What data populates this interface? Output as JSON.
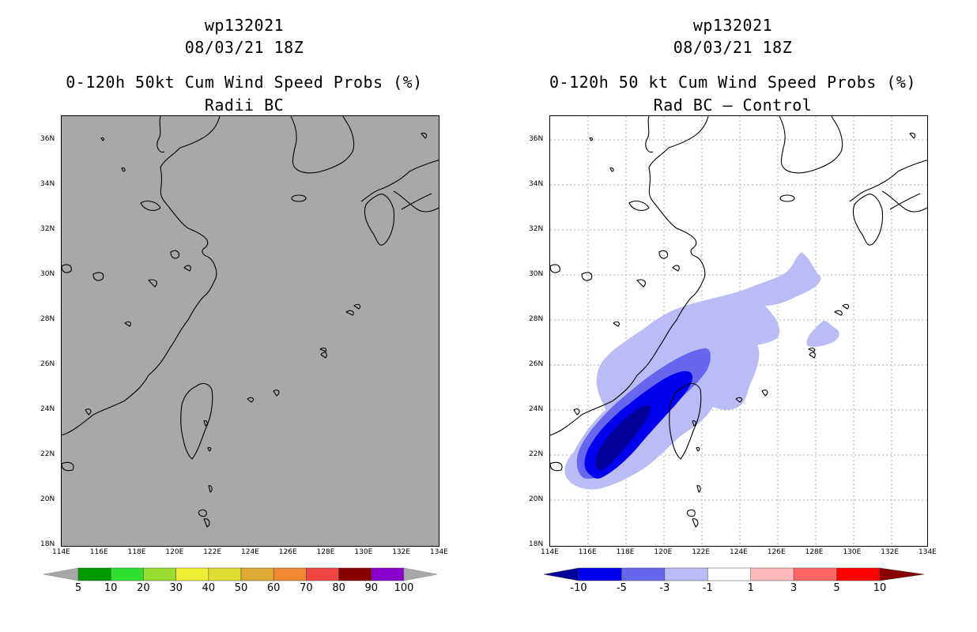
{
  "left_panel": {
    "storm_id": "wp132021",
    "date": "08/03/21 18Z",
    "product": "0-120h 50kt Cum Wind Speed Probs (%)",
    "subtitle": "Radii BC",
    "background_color": "#a8a8a8",
    "colorbar": {
      "colors": [
        "#009900",
        "#2ee02e",
        "#99dd33",
        "#eeee33",
        "#dddd33",
        "#ddaa33",
        "#ee8833",
        "#ee4444",
        "#880000",
        "#8800cc"
      ],
      "labels": [
        "5",
        "10",
        "20",
        "30",
        "40",
        "50",
        "60",
        "70",
        "80",
        "90",
        "100"
      ]
    }
  },
  "right_panel": {
    "storm_id": "wp132021",
    "date": "08/03/21 18Z",
    "product": "0-120h 50 kt Cum Wind Speed Probs (%)",
    "subtitle": "Rad BC – Control",
    "colorbar": {
      "colors": [
        "#000099",
        "#0000ee",
        "#6666ee",
        "#bbbbf5",
        "#ffffff",
        "#ffbbbb",
        "#ff6666",
        "#ff0000",
        "#880000"
      ],
      "labels": [
        "-10",
        "-5",
        "-3",
        "-1",
        "1",
        "3",
        "5",
        "10"
      ]
    }
  },
  "axes": {
    "lon_labels": [
      "114E",
      "116E",
      "118E",
      "120E",
      "122E",
      "124E",
      "126E",
      "128E",
      "130E",
      "132E",
      "134E"
    ],
    "lat_labels": [
      "36N",
      "34N",
      "32N",
      "30N",
      "28N",
      "26N",
      "24N",
      "22N",
      "20N",
      "18N"
    ]
  },
  "colors": {
    "coast": "#000000",
    "grid": "#b0b0b0"
  }
}
